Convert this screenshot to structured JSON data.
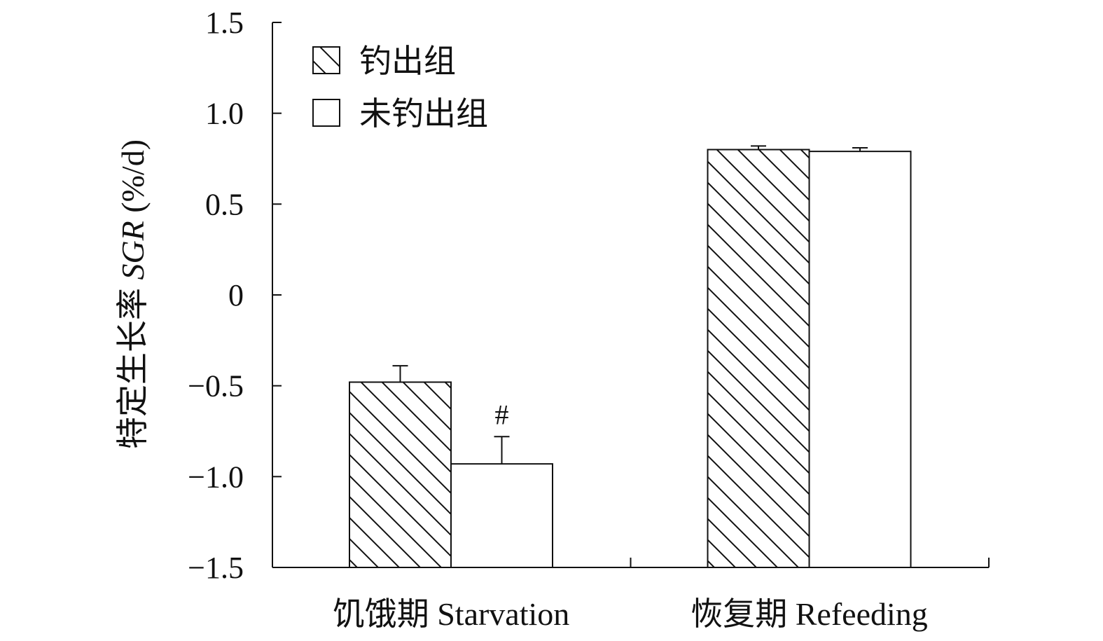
{
  "chart_data": {
    "type": "bar",
    "title": "",
    "xlabel": "",
    "ylabel": "特定生长率 SGR (%/d)",
    "ylabel_parts": {
      "prefix": "特定生长率 ",
      "italic": "SGR",
      "suffix": " (%/d)"
    },
    "ylim": [
      -1.5,
      1.5
    ],
    "yticks": [
      1.5,
      1.0,
      0.5,
      0,
      -0.5,
      -1.0,
      -1.5
    ],
    "ytick_labels": [
      "1.5",
      "1.0",
      "0.5",
      "0",
      "−0.5",
      "−1.0",
      "−1.5"
    ],
    "categories": [
      "饥饿期 Starvation",
      "恢复期 Refeeding"
    ],
    "series": [
      {
        "name": "钓出组",
        "pattern": "hatch",
        "values": [
          -0.48,
          0.8
        ],
        "errors": [
          0.09,
          0.02
        ]
      },
      {
        "name": "未钓出组",
        "pattern": "empty",
        "values": [
          -0.93,
          0.79
        ],
        "errors": [
          0.15,
          0.02
        ]
      }
    ],
    "annotations": [
      {
        "text": "#",
        "category_index": 0,
        "series_index": 1
      }
    ],
    "legend_position": "top-left",
    "grid": false,
    "colors": {
      "bar_fill": "#ffffff",
      "stroke": "#111111",
      "hatch": "#111111"
    }
  }
}
